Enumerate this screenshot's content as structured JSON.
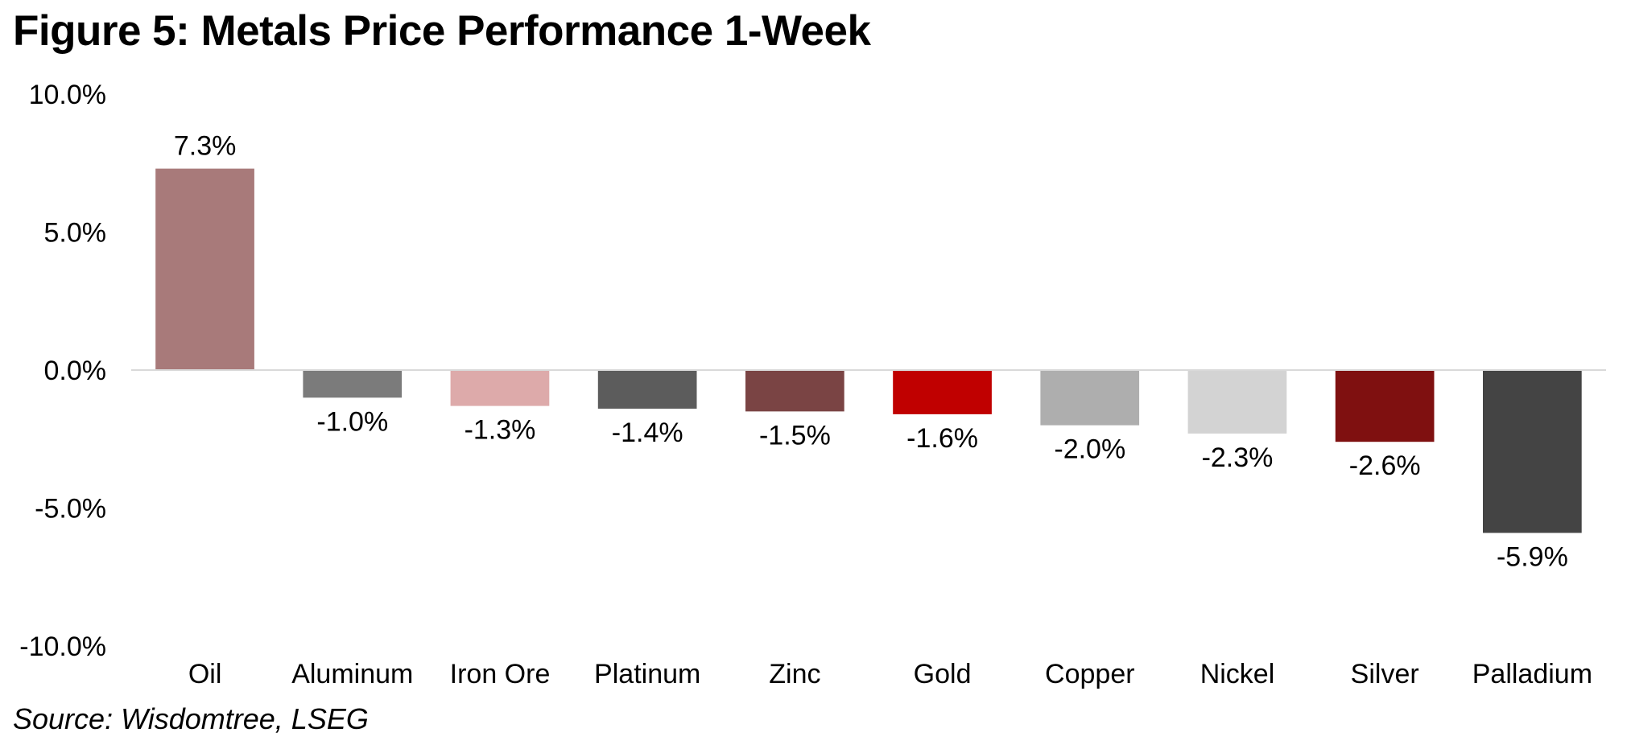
{
  "chart_data": {
    "type": "bar",
    "title": "Figure 5: Metals Price Performance 1-Week",
    "source": "Source: Wisdomtree, LSEG",
    "categories": [
      "Oil",
      "Aluminum",
      "Iron Ore",
      "Platinum",
      "Zinc",
      "Gold",
      "Copper",
      "Nickel",
      "Silver",
      "Palladium"
    ],
    "values": [
      7.3,
      -1.0,
      -1.3,
      -1.4,
      -1.5,
      -1.6,
      -2.0,
      -2.3,
      -2.6,
      -5.9
    ],
    "value_labels": [
      "7.3%",
      "-1.0%",
      "-1.3%",
      "-1.4%",
      "-1.5%",
      "-1.6%",
      "-2.0%",
      "-2.3%",
      "-2.6%",
      "-5.9%"
    ],
    "bar_colors": [
      "#A87A7A",
      "#7B7B7B",
      "#DDAAAA",
      "#5C5C5C",
      "#7A4444",
      "#C00000",
      "#AEAEAE",
      "#D3D3D3",
      "#7F1010",
      "#444444"
    ],
    "ylim": [
      -10,
      10
    ],
    "yticks": [
      10,
      5,
      0,
      -5,
      -10
    ],
    "ytick_labels": [
      "10.0%",
      "5.0%",
      "0.0%",
      "-5.0%",
      "-10.0%"
    ],
    "xlabel": "",
    "ylabel": "",
    "grid": false,
    "legend": "none"
  }
}
